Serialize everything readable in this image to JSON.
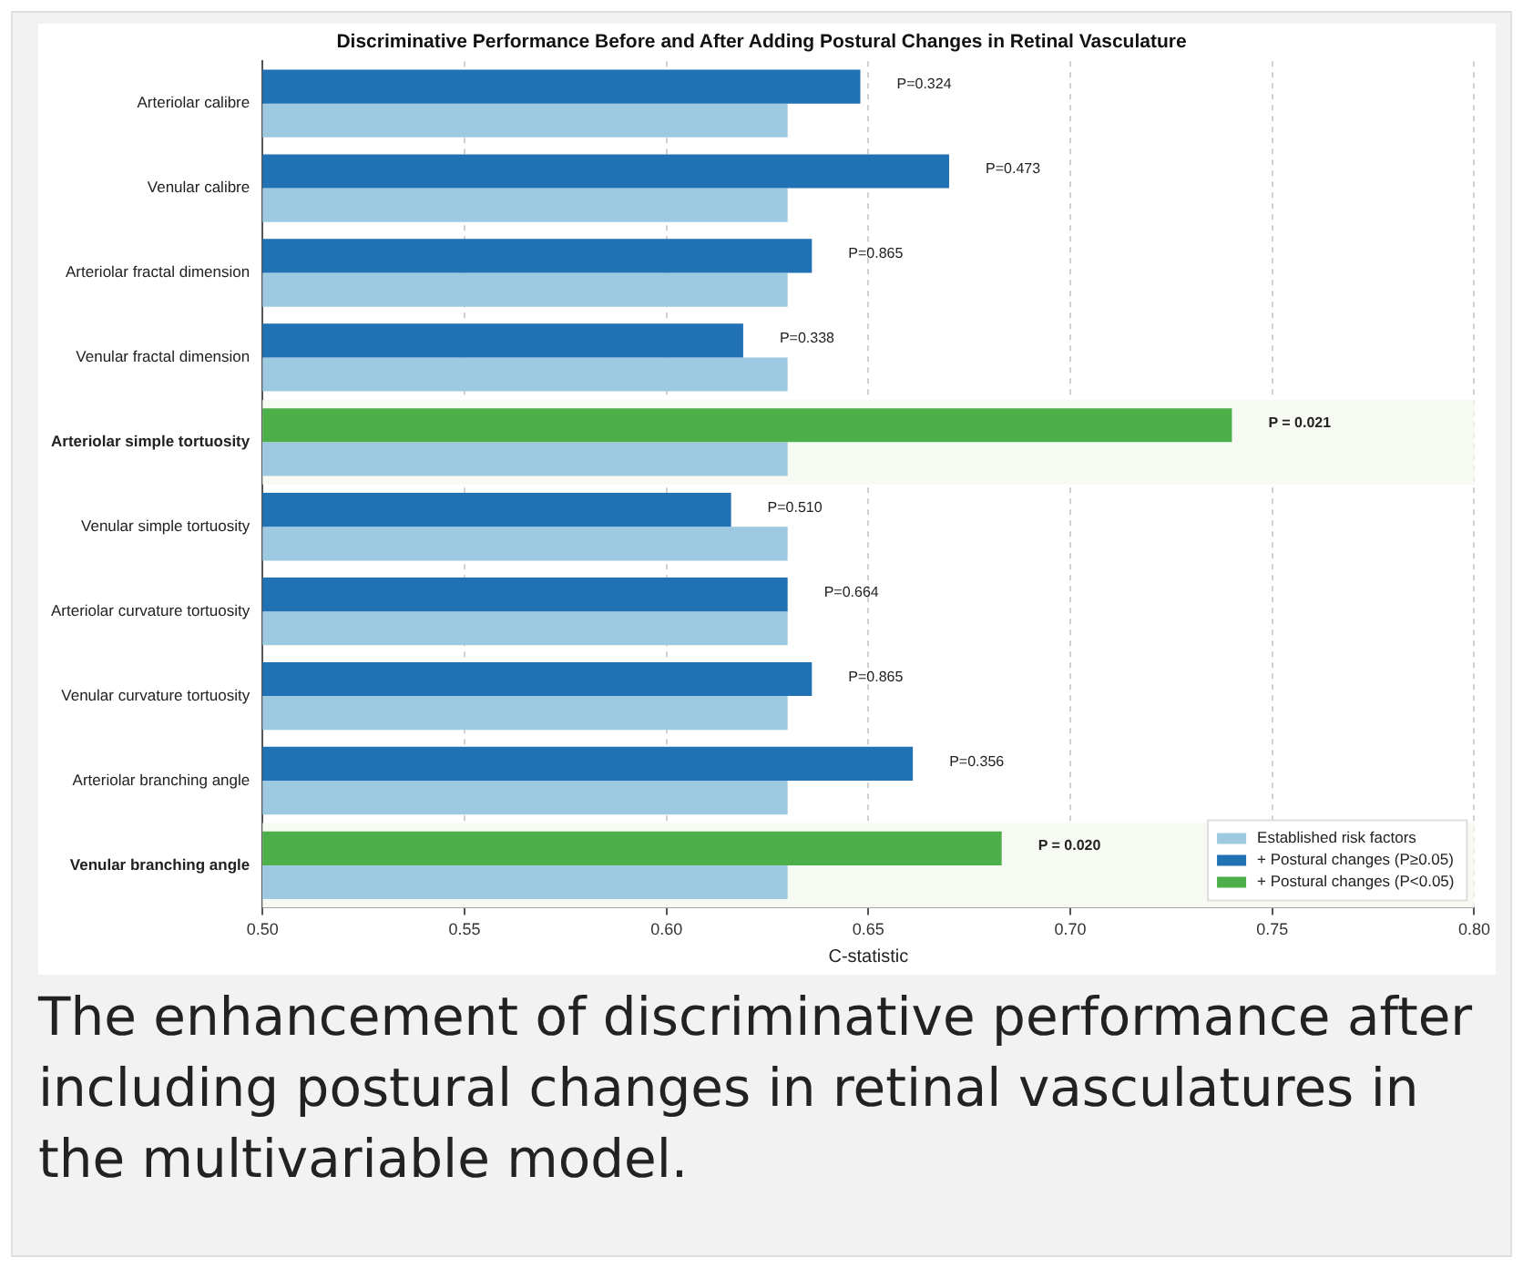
{
  "chart_data": {
    "type": "bar",
    "orientation": "horizontal",
    "title": "Discriminative Performance Before and After Adding Postural Changes in Retinal Vasculature",
    "xlabel": "C-statistic",
    "categories": [
      "Arteriolar calibre",
      "Venular calibre",
      "Arteriolar fractal dimension",
      "Venular fractal dimension",
      "Arteriolar simple tortuosity",
      "Venular simple tortuosity",
      "Arteriolar curvature tortuosity",
      "Venular curvature tortuosity",
      "Arteriolar branching angle",
      "Venular branching angle"
    ],
    "series": [
      {
        "name": "Established risk factors",
        "color": "#9ecae1",
        "values": [
          0.63,
          0.63,
          0.63,
          0.63,
          0.63,
          0.63,
          0.63,
          0.63,
          0.63,
          0.63
        ]
      },
      {
        "name": "+ Postural changes (P≥0.05)",
        "color": "#2171b5",
        "values": [
          0.648,
          0.67,
          0.636,
          0.619,
          null,
          0.616,
          0.63,
          0.636,
          0.661,
          null
        ]
      },
      {
        "name": "+ Postural changes (P<0.05)",
        "color": "#4daf4a",
        "values": [
          null,
          null,
          null,
          null,
          0.74,
          null,
          null,
          null,
          null,
          0.683
        ]
      }
    ],
    "xlim": [
      0.5,
      0.8
    ],
    "xticks": [
      {
        "value": 0.5,
        "label": "0.50"
      },
      {
        "value": 0.55,
        "label": "0.55"
      },
      {
        "value": 0.6,
        "label": "0.60"
      },
      {
        "value": 0.65,
        "label": "0.65"
      },
      {
        "value": 0.7,
        "label": "0.70"
      },
      {
        "value": 0.75,
        "label": "0.75"
      },
      {
        "value": 0.8,
        "label": "0.80"
      }
    ],
    "bands": [
      {
        "axis": "y",
        "from": "Arteriolar simple tortuosity",
        "to": "Arteriolar simple tortuosity",
        "color": "#f6faf3"
      },
      {
        "axis": "y",
        "from": "Venular branching angle",
        "to": "Venular branching angle",
        "color": "#f6faf3"
      }
    ],
    "grid": "x",
    "legend": "bottom right",
    "annotations": [
      {
        "text": "P=0.324",
        "x": 0.648,
        "y": "Arteriolar calibre"
      },
      {
        "text": "P=0.473",
        "x": 0.67,
        "y": "Venular calibre"
      },
      {
        "text": "P=0.865",
        "x": 0.636,
        "y": "Arteriolar fractal dimension"
      },
      {
        "text": "P=0.338",
        "x": 0.619,
        "y": "Venular fractal dimension"
      },
      {
        "text": "P = 0.021",
        "x": 0.74,
        "y": "Arteriolar simple tortuosity"
      },
      {
        "text": "P=0.510",
        "x": 0.616,
        "y": "Venular simple tortuosity"
      },
      {
        "text": "P=0.664",
        "x": 0.63,
        "y": "Arteriolar curvature tortuosity"
      },
      {
        "text": "P=0.865",
        "x": 0.636,
        "y": "Venular curvature tortuosity"
      },
      {
        "text": "P=0.356",
        "x": 0.661,
        "y": "Arteriolar branching angle"
      },
      {
        "text": "P = 0.020",
        "x": 0.683,
        "y": "Venular branching angle"
      },
      "The enhancement of discriminative performance after including postural changes in retinal vasculatures in the multivariable model."
    ]
  }
}
